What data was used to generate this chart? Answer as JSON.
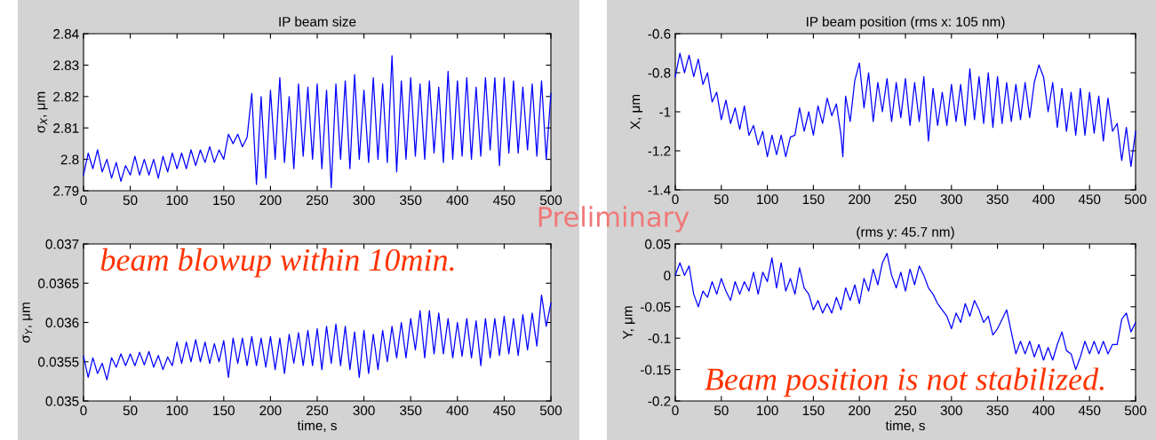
{
  "chart_data": [
    {
      "type": "line",
      "title": "IP beam size",
      "ylabel": "σ$_{X}$, μm",
      "xlim": [
        0,
        500
      ],
      "xticks": [
        0,
        50,
        100,
        150,
        200,
        250,
        300,
        350,
        400,
        450,
        500
      ],
      "ylim": [
        2.79,
        2.84
      ],
      "yticks": [
        2.79,
        2.8,
        2.81,
        2.82,
        2.83,
        2.84
      ],
      "grid": false,
      "series": [
        {
          "color": "#0000ff",
          "x": [
            0,
            5,
            10,
            15,
            20,
            25,
            30,
            35,
            40,
            45,
            50,
            55,
            60,
            65,
            70,
            75,
            80,
            85,
            90,
            95,
            100,
            105,
            110,
            115,
            120,
            125,
            130,
            135,
            140,
            145,
            150,
            155,
            160,
            165,
            170,
            175,
            180,
            185,
            190,
            195,
            200,
            205,
            210,
            215,
            220,
            225,
            230,
            235,
            240,
            245,
            250,
            255,
            260,
            265,
            270,
            275,
            280,
            285,
            290,
            295,
            300,
            305,
            310,
            315,
            320,
            325,
            330,
            335,
            340,
            345,
            350,
            355,
            360,
            365,
            370,
            375,
            380,
            385,
            390,
            395,
            400,
            405,
            410,
            415,
            420,
            425,
            430,
            435,
            440,
            445,
            450,
            455,
            460,
            465,
            470,
            475,
            480,
            485,
            490,
            495,
            500
          ],
          "values": [
            2.795,
            2.802,
            2.797,
            2.803,
            2.796,
            2.8,
            2.794,
            2.799,
            2.793,
            2.798,
            2.795,
            2.801,
            2.795,
            2.8,
            2.795,
            2.8,
            2.794,
            2.801,
            2.796,
            2.802,
            2.797,
            2.802,
            2.797,
            2.803,
            2.798,
            2.803,
            2.799,
            2.804,
            2.799,
            2.803,
            2.8,
            2.808,
            2.805,
            2.808,
            2.804,
            2.807,
            2.821,
            2.792,
            2.82,
            2.794,
            2.822,
            2.8,
            2.826,
            2.799,
            2.82,
            2.797,
            2.824,
            2.801,
            2.823,
            2.8,
            2.824,
            2.797,
            2.822,
            2.791,
            2.824,
            2.8,
            2.825,
            2.797,
            2.827,
            2.8,
            2.822,
            2.799,
            2.826,
            2.8,
            2.824,
            2.799,
            2.833,
            2.796,
            2.825,
            2.8,
            2.826,
            2.801,
            2.824,
            2.8,
            2.825,
            2.802,
            2.823,
            2.799,
            2.828,
            2.8,
            2.825,
            2.801,
            2.826,
            2.8,
            2.823,
            2.801,
            2.826,
            2.803,
            2.826,
            2.798,
            2.826,
            2.802,
            2.825,
            2.802,
            2.823,
            2.803,
            2.824,
            2.801,
            2.825,
            2.8,
            2.821
          ]
        }
      ]
    },
    {
      "type": "line",
      "xlabel": "time, s",
      "ylabel": "σ$_{Y}$, μm",
      "xlim": [
        0,
        500
      ],
      "xticks": [
        0,
        50,
        100,
        150,
        200,
        250,
        300,
        350,
        400,
        450,
        500
      ],
      "ylim": [
        0.035,
        0.037
      ],
      "yticks": [
        0.035,
        0.0355,
        0.036,
        0.0365,
        0.037
      ],
      "grid": false,
      "annotations": [
        "beam blowup within 10min."
      ],
      "series": [
        {
          "color": "#0000ff",
          "x": [
            0,
            5,
            10,
            15,
            20,
            25,
            30,
            35,
            40,
            45,
            50,
            55,
            60,
            65,
            70,
            75,
            80,
            85,
            90,
            95,
            100,
            105,
            110,
            115,
            120,
            125,
            130,
            135,
            140,
            145,
            150,
            155,
            160,
            165,
            170,
            175,
            180,
            185,
            190,
            195,
            200,
            205,
            210,
            215,
            220,
            225,
            230,
            235,
            240,
            245,
            250,
            255,
            260,
            265,
            270,
            275,
            280,
            285,
            290,
            295,
            300,
            305,
            310,
            315,
            320,
            325,
            330,
            335,
            340,
            345,
            350,
            355,
            360,
            365,
            370,
            375,
            380,
            385,
            390,
            395,
            400,
            405,
            410,
            415,
            420,
            425,
            430,
            435,
            440,
            445,
            450,
            455,
            460,
            465,
            470,
            475,
            480,
            485,
            490,
            495,
            500
          ],
          "values": [
            0.03557,
            0.0353,
            0.03555,
            0.03535,
            0.03548,
            0.03527,
            0.03555,
            0.03543,
            0.0356,
            0.03545,
            0.0356,
            0.03545,
            0.03562,
            0.03546,
            0.03563,
            0.03543,
            0.03558,
            0.0354,
            0.03556,
            0.03545,
            0.03575,
            0.03548,
            0.03575,
            0.0355,
            0.03578,
            0.0355,
            0.03575,
            0.03548,
            0.03573,
            0.0355,
            0.03577,
            0.0353,
            0.0358,
            0.03548,
            0.0358,
            0.03545,
            0.03582,
            0.03545,
            0.0358,
            0.03543,
            0.03582,
            0.0354,
            0.0358,
            0.03535,
            0.03585,
            0.03548,
            0.03587,
            0.03545,
            0.0359,
            0.03545,
            0.03592,
            0.0354,
            0.03595,
            0.03548,
            0.03598,
            0.03545,
            0.03595,
            0.0354,
            0.03588,
            0.0353,
            0.0359,
            0.03535,
            0.03585,
            0.0354,
            0.0359,
            0.0355,
            0.03595,
            0.03555,
            0.036,
            0.03555,
            0.03605,
            0.03565,
            0.03615,
            0.03555,
            0.03615,
            0.0356,
            0.03612,
            0.0356,
            0.03605,
            0.03555,
            0.036,
            0.03557,
            0.03605,
            0.03555,
            0.03602,
            0.03545,
            0.03605,
            0.03555,
            0.03605,
            0.03558,
            0.03608,
            0.0356,
            0.03605,
            0.03558,
            0.0361,
            0.03565,
            0.03612,
            0.0357,
            0.03635,
            0.03595,
            0.03625
          ]
        }
      ]
    },
    {
      "type": "line",
      "title": "IP beam position (rms x: 105 nm)",
      "ylabel": "X, μm",
      "xlim": [
        0,
        500
      ],
      "xticks": [
        0,
        50,
        100,
        150,
        200,
        250,
        300,
        350,
        400,
        450,
        500
      ],
      "ylim": [
        -1.4,
        -0.6
      ],
      "yticks": [
        -1.4,
        -1.2,
        -1,
        -0.8,
        -0.6
      ],
      "grid": false,
      "series": [
        {
          "color": "#0000ff",
          "x": [
            0,
            5,
            10,
            15,
            20,
            25,
            30,
            35,
            40,
            45,
            50,
            55,
            60,
            65,
            70,
            75,
            80,
            85,
            90,
            95,
            100,
            105,
            110,
            115,
            120,
            125,
            130,
            135,
            140,
            145,
            150,
            155,
            160,
            165,
            170,
            175,
            180,
            182,
            185,
            190,
            195,
            200,
            205,
            210,
            215,
            220,
            225,
            230,
            235,
            240,
            245,
            250,
            255,
            260,
            265,
            270,
            275,
            280,
            285,
            290,
            295,
            300,
            305,
            310,
            315,
            320,
            325,
            330,
            335,
            340,
            345,
            350,
            355,
            360,
            365,
            370,
            375,
            380,
            385,
            390,
            395,
            400,
            405,
            410,
            415,
            420,
            425,
            430,
            435,
            440,
            445,
            450,
            455,
            460,
            465,
            470,
            475,
            480,
            485,
            490,
            495,
            500
          ],
          "values": [
            -0.82,
            -0.7,
            -0.8,
            -0.71,
            -0.82,
            -0.73,
            -0.86,
            -0.8,
            -0.95,
            -0.9,
            -1.04,
            -0.94,
            -1.06,
            -0.98,
            -1.09,
            -0.97,
            -1.12,
            -1.07,
            -1.17,
            -1.1,
            -1.23,
            -1.12,
            -1.22,
            -1.12,
            -1.23,
            -1.13,
            -1.12,
            -0.98,
            -1.1,
            -1.0,
            -1.12,
            -0.97,
            -1.06,
            -0.93,
            -1.02,
            -0.96,
            -1.12,
            -1.23,
            -0.92,
            -1.05,
            -0.84,
            -0.75,
            -0.98,
            -0.8,
            -1.05,
            -0.85,
            -1.0,
            -0.83,
            -1.05,
            -0.85,
            -1.03,
            -0.83,
            -1.07,
            -0.85,
            -1.05,
            -0.82,
            -1.15,
            -0.88,
            -1.07,
            -0.9,
            -1.07,
            -0.86,
            -1.05,
            -0.86,
            -1.07,
            -0.78,
            -1.04,
            -0.82,
            -1.06,
            -0.8,
            -1.08,
            -0.82,
            -1.06,
            -0.85,
            -1.05,
            -0.86,
            -1.04,
            -0.85,
            -1.03,
            -0.85,
            -0.76,
            -0.82,
            -1.0,
            -0.85,
            -1.08,
            -0.88,
            -1.1,
            -0.9,
            -1.12,
            -0.88,
            -1.12,
            -0.9,
            -1.11,
            -0.92,
            -1.15,
            -0.93,
            -1.1,
            -1.06,
            -1.25,
            -1.08,
            -1.28,
            -1.1
          ]
        }
      ]
    },
    {
      "type": "line",
      "title": "(rms y: 45.7 nm)",
      "xlabel": "time, s",
      "ylabel": "Y, μm",
      "xlim": [
        0,
        500
      ],
      "xticks": [
        0,
        50,
        100,
        150,
        200,
        250,
        300,
        350,
        400,
        450,
        500
      ],
      "ylim": [
        -0.2,
        0.05
      ],
      "yticks": [
        -0.2,
        -0.15,
        -0.1,
        -0.05,
        0,
        0.05
      ],
      "grid": false,
      "annotations": [
        "Preliminary",
        "Beam position is not stabilized."
      ],
      "series": [
        {
          "color": "#0000ff",
          "x": [
            0,
            5,
            10,
            15,
            20,
            25,
            30,
            35,
            40,
            45,
            50,
            55,
            60,
            65,
            70,
            75,
            80,
            85,
            90,
            95,
            100,
            105,
            110,
            115,
            120,
            125,
            130,
            135,
            140,
            145,
            150,
            155,
            160,
            165,
            170,
            175,
            180,
            185,
            190,
            195,
            200,
            205,
            210,
            215,
            220,
            225,
            230,
            235,
            240,
            245,
            250,
            255,
            260,
            265,
            270,
            275,
            280,
            285,
            290,
            295,
            300,
            305,
            310,
            315,
            320,
            325,
            330,
            335,
            340,
            345,
            350,
            355,
            360,
            365,
            370,
            375,
            380,
            385,
            390,
            395,
            400,
            405,
            410,
            415,
            420,
            425,
            430,
            435,
            440,
            445,
            450,
            455,
            460,
            465,
            470,
            475,
            480,
            485,
            490,
            495,
            500
          ],
          "values": [
            0.0,
            0.02,
            0.0,
            0.015,
            -0.03,
            -0.05,
            -0.025,
            -0.035,
            -0.01,
            -0.03,
            -0.005,
            -0.025,
            -0.04,
            -0.01,
            -0.03,
            -0.01,
            -0.025,
            0.005,
            -0.03,
            0.005,
            -0.01,
            0.028,
            -0.02,
            0.02,
            -0.025,
            -0.005,
            -0.03,
            0.012,
            -0.02,
            -0.03,
            -0.055,
            -0.04,
            -0.06,
            -0.045,
            -0.06,
            -0.035,
            -0.055,
            -0.02,
            -0.04,
            -0.015,
            -0.045,
            -0.005,
            -0.025,
            0.01,
            -0.015,
            0.02,
            0.035,
            0.0,
            -0.02,
            0.005,
            -0.025,
            0.01,
            -0.015,
            0.015,
            0.0,
            -0.02,
            -0.03,
            -0.045,
            -0.055,
            -0.065,
            -0.085,
            -0.06,
            -0.075,
            -0.045,
            -0.065,
            -0.04,
            -0.055,
            -0.075,
            -0.065,
            -0.095,
            -0.085,
            -0.07,
            -0.055,
            -0.09,
            -0.125,
            -0.105,
            -0.125,
            -0.105,
            -0.13,
            -0.11,
            -0.135,
            -0.115,
            -0.135,
            -0.11,
            -0.09,
            -0.12,
            -0.125,
            -0.15,
            -0.13,
            -0.105,
            -0.125,
            -0.105,
            -0.125,
            -0.105,
            -0.125,
            -0.11,
            -0.11,
            -0.07,
            -0.06,
            -0.09,
            -0.075
          ]
        }
      ]
    }
  ]
}
